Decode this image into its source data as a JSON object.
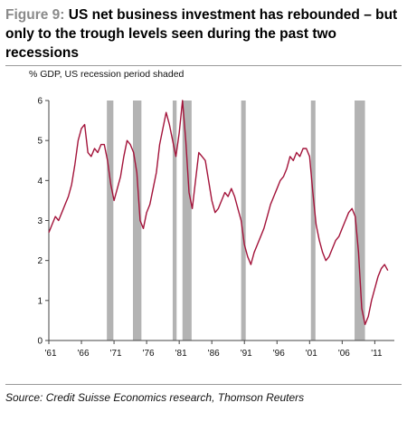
{
  "header": {
    "figure_label": "Figure 9:",
    "title_text": " US net business investment has rebounded – but only to the trough levels seen during the past two recessions"
  },
  "footer": {
    "source": "Source: Credit Suisse Economics research, Thomson Reuters"
  },
  "chart_data": {
    "type": "line",
    "title": "",
    "subtitle": "% GDP, US recession period shaded",
    "xlabel": "",
    "ylabel": "",
    "xlim": [
      1961,
      2014
    ],
    "ylim": [
      0,
      6
    ],
    "y_ticks": [
      0,
      1,
      2,
      3,
      4,
      5,
      6
    ],
    "x_ticks": [
      1961,
      1966,
      1971,
      1976,
      1981,
      1986,
      1991,
      1996,
      2001,
      2006,
      2011
    ],
    "x_tick_labels": [
      "'61",
      "'66",
      "'71",
      "'76",
      "'81",
      "'86",
      "'91",
      "'96",
      "'01",
      "'06",
      "'11"
    ],
    "grid": false,
    "recessions": [
      [
        1969.9,
        1970.9
      ],
      [
        1973.9,
        1975.2
      ],
      [
        1980.0,
        1980.6
      ],
      [
        1981.5,
        1982.9
      ],
      [
        1990.5,
        1991.2
      ],
      [
        2001.2,
        2001.9
      ],
      [
        2007.9,
        2009.5
      ]
    ],
    "recession_color": "#b3b3b3",
    "series": [
      {
        "color": "#a3133a",
        "x": [
          1961.0,
          1961.5,
          1962.0,
          1962.5,
          1963.0,
          1963.5,
          1964.0,
          1964.5,
          1965.0,
          1965.5,
          1966.0,
          1966.5,
          1967.0,
          1967.5,
          1968.0,
          1968.5,
          1969.0,
          1969.5,
          1970.0,
          1970.5,
          1971.0,
          1971.5,
          1972.0,
          1972.5,
          1973.0,
          1973.5,
          1974.0,
          1974.5,
          1975.0,
          1975.5,
          1976.0,
          1976.5,
          1977.0,
          1977.5,
          1978.0,
          1978.5,
          1979.0,
          1979.5,
          1980.0,
          1980.5,
          1981.0,
          1981.5,
          1982.0,
          1982.5,
          1983.0,
          1983.5,
          1984.0,
          1984.5,
          1985.0,
          1985.5,
          1986.0,
          1986.5,
          1987.0,
          1987.5,
          1988.0,
          1988.5,
          1989.0,
          1989.5,
          1990.0,
          1990.5,
          1991.0,
          1991.5,
          1992.0,
          1992.5,
          1993.0,
          1993.5,
          1994.0,
          1994.5,
          1995.0,
          1995.5,
          1996.0,
          1996.5,
          1997.0,
          1997.5,
          1998.0,
          1998.5,
          1999.0,
          1999.5,
          2000.0,
          2000.5,
          2001.0,
          2001.5,
          2002.0,
          2002.5,
          2003.0,
          2003.5,
          2004.0,
          2004.5,
          2005.0,
          2005.5,
          2006.0,
          2006.5,
          2007.0,
          2007.5,
          2008.0,
          2008.5,
          2009.0,
          2009.5,
          2010.0,
          2010.5,
          2011.0,
          2011.5,
          2012.0,
          2012.5,
          2013.0
        ],
        "y": [
          2.7,
          2.9,
          3.1,
          3.0,
          3.2,
          3.4,
          3.6,
          3.9,
          4.4,
          5.0,
          5.3,
          5.4,
          4.7,
          4.6,
          4.8,
          4.7,
          4.9,
          4.9,
          4.5,
          3.9,
          3.5,
          3.8,
          4.1,
          4.6,
          5.0,
          4.9,
          4.7,
          4.2,
          3.0,
          2.8,
          3.2,
          3.4,
          3.8,
          4.2,
          4.9,
          5.3,
          5.7,
          5.4,
          5.0,
          4.6,
          5.2,
          6.0,
          5.0,
          3.7,
          3.3,
          4.0,
          4.7,
          4.6,
          4.5,
          4.0,
          3.5,
          3.2,
          3.3,
          3.5,
          3.7,
          3.6,
          3.8,
          3.6,
          3.3,
          3.0,
          2.4,
          2.1,
          1.9,
          2.2,
          2.4,
          2.6,
          2.8,
          3.1,
          3.4,
          3.6,
          3.8,
          4.0,
          4.1,
          4.3,
          4.6,
          4.5,
          4.7,
          4.6,
          4.8,
          4.8,
          4.6,
          3.7,
          2.9,
          2.5,
          2.2,
          2.0,
          2.1,
          2.3,
          2.5,
          2.6,
          2.8,
          3.0,
          3.2,
          3.3,
          3.1,
          2.2,
          0.8,
          0.4,
          0.6,
          1.0,
          1.3,
          1.6,
          1.8,
          1.9,
          1.75
        ]
      }
    ]
  }
}
